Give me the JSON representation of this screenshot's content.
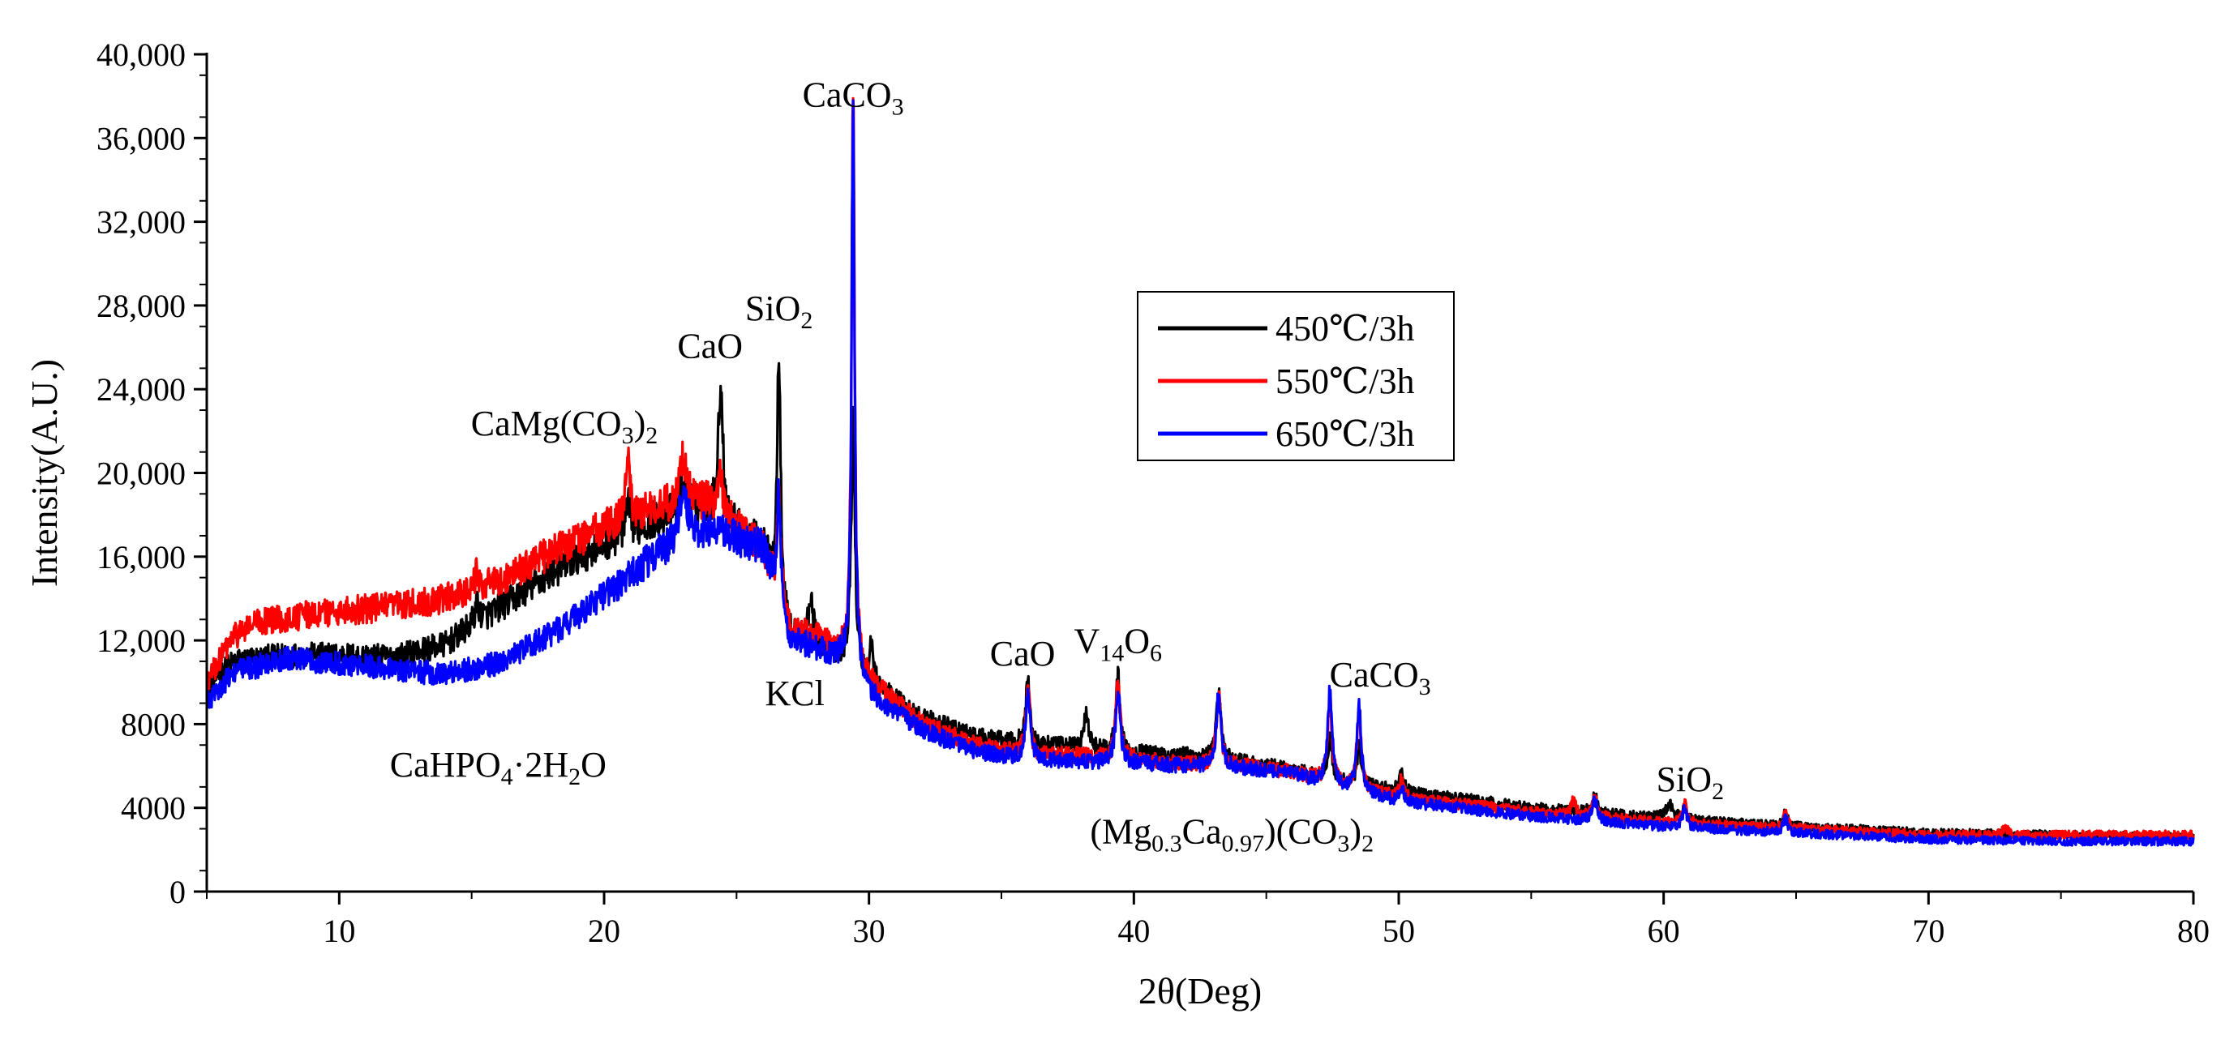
{
  "chart_data": {
    "type": "line",
    "title": "",
    "xlabel": "2θ(Deg)",
    "ylabel": "Intensity(A.U.)",
    "xlim": [
      5,
      80
    ],
    "ylim": [
      0,
      40000
    ],
    "x_ticks": [
      10,
      20,
      30,
      40,
      50,
      60,
      70,
      80
    ],
    "x_tick_labels": [
      "10",
      "20",
      "30",
      "40",
      "50",
      "60",
      "70",
      "80"
    ],
    "y_ticks": [
      0,
      4000,
      8000,
      12000,
      16000,
      20000,
      24000,
      28000,
      32000,
      36000,
      40000
    ],
    "y_tick_labels": [
      "0",
      "4000",
      "8000",
      "12,000",
      "16,000",
      "20,000",
      "24,000",
      "28,000",
      "32,000",
      "36,000",
      "40,000"
    ],
    "legend": {
      "position": "top-center",
      "entries": [
        "450℃/3h",
        "550℃/3h",
        "650℃/3h"
      ]
    },
    "series": [
      {
        "name": "450℃/3h",
        "color": "#000000",
        "baseline": [
          [
            5,
            9800
          ],
          [
            6,
            11000
          ],
          [
            8,
            11300
          ],
          [
            10,
            11300
          ],
          [
            12,
            11200
          ],
          [
            14,
            11800
          ],
          [
            16,
            13500
          ],
          [
            18,
            15200
          ],
          [
            20,
            16600
          ],
          [
            22,
            17800
          ],
          [
            24,
            18200
          ],
          [
            26,
            16500
          ],
          [
            27,
            12200
          ],
          [
            28,
            11800
          ],
          [
            29,
            11200
          ],
          [
            30,
            10000
          ],
          [
            32,
            8300
          ],
          [
            34,
            7400
          ],
          [
            36,
            7000
          ],
          [
            38,
            6900
          ],
          [
            40,
            6600
          ],
          [
            42,
            6500
          ],
          [
            44,
            6200
          ],
          [
            46,
            5800
          ],
          [
            48,
            5200
          ],
          [
            50,
            4800
          ],
          [
            55,
            4000
          ],
          [
            60,
            3500
          ],
          [
            65,
            3100
          ],
          [
            70,
            2800
          ],
          [
            75,
            2700
          ],
          [
            80,
            2600
          ]
        ],
        "peaks": [
          [
            15.2,
            900,
            0.12
          ],
          [
            20.9,
            1300,
            0.1
          ],
          [
            23.0,
            1500,
            0.2
          ],
          [
            24.4,
            6500,
            0.1
          ],
          [
            26.6,
            12000,
            0.08
          ],
          [
            27.8,
            2200,
            0.1
          ],
          [
            29.4,
            12300,
            0.08
          ],
          [
            30.1,
            1800,
            0.1
          ],
          [
            36.0,
            3000,
            0.1
          ],
          [
            38.2,
            1600,
            0.1
          ],
          [
            39.4,
            3500,
            0.1
          ],
          [
            43.2,
            3200,
            0.1
          ],
          [
            47.4,
            2000,
            0.1
          ],
          [
            48.5,
            1800,
            0.1
          ],
          [
            50.1,
            800,
            0.1
          ],
          [
            57.4,
            800,
            0.12
          ],
          [
            60.2,
            700,
            0.15
          ],
          [
            60.8,
            600,
            0.1
          ],
          [
            64.6,
            600,
            0.1
          ]
        ]
      },
      {
        "name": "550℃/3h",
        "color": "#ff0000",
        "baseline": [
          [
            5,
            10000
          ],
          [
            6,
            12200
          ],
          [
            7,
            12900
          ],
          [
            10,
            13400
          ],
          [
            12,
            13600
          ],
          [
            14,
            14000
          ],
          [
            16,
            14800
          ],
          [
            18,
            16200
          ],
          [
            20,
            17400
          ],
          [
            22,
            18400
          ],
          [
            24,
            18600
          ],
          [
            26,
            16300
          ],
          [
            27,
            12500
          ],
          [
            28,
            12200
          ],
          [
            29,
            11300
          ],
          [
            30,
            10000
          ],
          [
            32,
            8000
          ],
          [
            34,
            7000
          ],
          [
            36,
            6500
          ],
          [
            38,
            6500
          ],
          [
            40,
            6300
          ],
          [
            42,
            6100
          ],
          [
            44,
            6000
          ],
          [
            46,
            5700
          ],
          [
            48,
            5000
          ],
          [
            50,
            4500
          ],
          [
            55,
            3800
          ],
          [
            60,
            3300
          ],
          [
            65,
            3000
          ],
          [
            70,
            2700
          ],
          [
            75,
            2700
          ],
          [
            80,
            2700
          ]
        ],
        "peaks": [
          [
            15.2,
            700,
            0.12
          ],
          [
            20.9,
            2500,
            0.1
          ],
          [
            23.0,
            2300,
            0.15
          ],
          [
            24.4,
            1500,
            0.1
          ],
          [
            26.6,
            5000,
            0.08
          ],
          [
            29.4,
            27000,
            0.07
          ],
          [
            36.0,
            3200,
            0.1
          ],
          [
            39.4,
            3600,
            0.1
          ],
          [
            43.2,
            3500,
            0.1
          ],
          [
            47.4,
            4000,
            0.1
          ],
          [
            48.5,
            3600,
            0.1
          ],
          [
            50.1,
            800,
            0.1
          ],
          [
            56.6,
            700,
            0.1
          ],
          [
            57.4,
            900,
            0.12
          ],
          [
            60.8,
            900,
            0.1
          ],
          [
            64.6,
            700,
            0.1
          ],
          [
            72.9,
            400,
            0.1
          ]
        ]
      },
      {
        "name": "650℃/3h",
        "color": "#0000ff",
        "baseline": [
          [
            5,
            9000
          ],
          [
            6,
            10500
          ],
          [
            8,
            11100
          ],
          [
            10,
            10900
          ],
          [
            12,
            10600
          ],
          [
            14,
            10400
          ],
          [
            16,
            10900
          ],
          [
            18,
            12300
          ],
          [
            20,
            14100
          ],
          [
            22,
            16100
          ],
          [
            24,
            17300
          ],
          [
            26,
            16400
          ],
          [
            27,
            12000
          ],
          [
            28,
            11600
          ],
          [
            29,
            11000
          ],
          [
            30,
            9400
          ],
          [
            32,
            7700
          ],
          [
            34,
            6700
          ],
          [
            36,
            6300
          ],
          [
            38,
            6200
          ],
          [
            40,
            6100
          ],
          [
            42,
            6000
          ],
          [
            44,
            5900
          ],
          [
            46,
            5600
          ],
          [
            48,
            4900
          ],
          [
            50,
            4300
          ],
          [
            55,
            3600
          ],
          [
            60,
            3100
          ],
          [
            65,
            2800
          ],
          [
            70,
            2500
          ],
          [
            75,
            2400
          ],
          [
            80,
            2400
          ]
        ],
        "peaks": [
          [
            23.0,
            2400,
            0.2
          ],
          [
            26.6,
            5400,
            0.08
          ],
          [
            29.4,
            27300,
            0.07
          ],
          [
            36.0,
            3200,
            0.1
          ],
          [
            39.4,
            3700,
            0.1
          ],
          [
            43.2,
            3600,
            0.1
          ],
          [
            47.4,
            4400,
            0.1
          ],
          [
            48.5,
            4100,
            0.1
          ],
          [
            50.1,
            700,
            0.1
          ],
          [
            57.4,
            1000,
            0.12
          ],
          [
            60.8,
            900,
            0.1
          ],
          [
            64.6,
            700,
            0.1
          ]
        ]
      }
    ],
    "annotations": [
      {
        "id": "caco3_main",
        "segments": [
          {
            "t": "CaCO"
          },
          {
            "t": "3",
            "sub": true
          }
        ],
        "x": 29.4,
        "y": 37500
      },
      {
        "id": "sio2_a",
        "segments": [
          {
            "t": "SiO"
          },
          {
            "t": "2",
            "sub": true
          }
        ],
        "x": 26.6,
        "y": 27300
      },
      {
        "id": "cao_a",
        "segments": [
          {
            "t": "CaO"
          }
        ],
        "x": 24.0,
        "y": 25500
      },
      {
        "id": "camgco3",
        "segments": [
          {
            "t": "CaMg(CO"
          },
          {
            "t": "3",
            "sub": true
          },
          {
            "t": ")"
          },
          {
            "t": "2",
            "sub": true
          }
        ],
        "x": 18.5,
        "y": 21800
      },
      {
        "id": "kcl",
        "segments": [
          {
            "t": "KCl"
          }
        ],
        "x": 27.2,
        "y": 8900
      },
      {
        "id": "cahpo4",
        "segments": [
          {
            "t": "CaHPO"
          },
          {
            "t": "4",
            "sub": true
          },
          {
            "t": "·2H"
          },
          {
            "t": "2",
            "sub": true
          },
          {
            "t": "O"
          }
        ],
        "x": 16.0,
        "y": 5500
      },
      {
        "id": "cao_b",
        "segments": [
          {
            "t": "CaO"
          }
        ],
        "x": 35.8,
        "y": 10800
      },
      {
        "id": "v14o6",
        "segments": [
          {
            "t": "V"
          },
          {
            "t": "14",
            "sub": true
          },
          {
            "t": "O"
          },
          {
            "t": "6",
            "sub": true
          }
        ],
        "x": 39.4,
        "y": 11400
      },
      {
        "id": "caco3_b",
        "segments": [
          {
            "t": "CaCO"
          },
          {
            "t": "3",
            "sub": true
          }
        ],
        "x": 49.3,
        "y": 9800
      },
      {
        "id": "mgca",
        "segments": [
          {
            "t": "(Mg"
          },
          {
            "t": "0.3",
            "sub": true
          },
          {
            "t": "Ca"
          },
          {
            "t": "0.97",
            "sub": true
          },
          {
            "t": ")(CO"
          },
          {
            "t": "3",
            "sub": true
          },
          {
            "t": ")"
          },
          {
            "t": "2",
            "sub": true
          }
        ],
        "x": 43.7,
        "y": 2300
      },
      {
        "id": "sio2_b",
        "segments": [
          {
            "t": "SiO"
          },
          {
            "t": "2",
            "sub": true
          }
        ],
        "x": 61.0,
        "y": 4800
      }
    ]
  }
}
